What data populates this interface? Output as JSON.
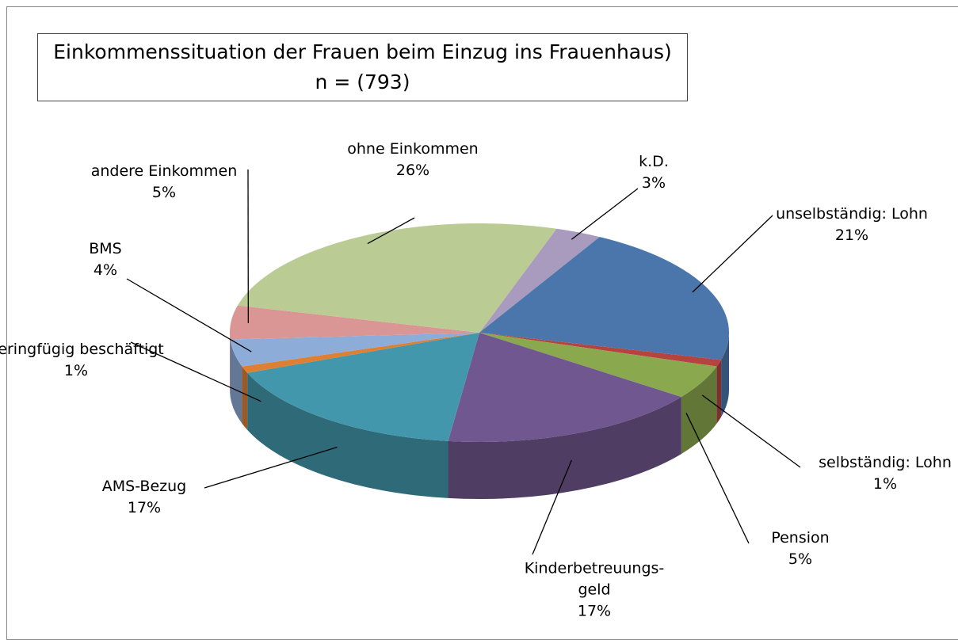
{
  "chart_data": {
    "type": "pie",
    "title": "Einkommenssituation der Frauen beim Einzug ins Frauenhaus)",
    "subtitle": "n = (793)",
    "categories": [
      "k.D.",
      "unselbständig: Lohn",
      "selbständig: Lohn",
      "Pension",
      "Kinderbetreuungs-geld",
      "AMS-Bezug",
      "geringfügig beschäftigt",
      "BMS",
      "andere Einkommen",
      "ohne Einkommen"
    ],
    "values": [
      3,
      21,
      1,
      5,
      17,
      17,
      1,
      4,
      5,
      26
    ],
    "value_labels": [
      "3%",
      "21%",
      "1%",
      "5%",
      "17%",
      "17%",
      "1%",
      "4%",
      "5%",
      "26%"
    ],
    "colors": [
      "#a99bbd",
      "#4a76ab",
      "#b64340",
      "#8aa84e",
      "#71578f",
      "#4397ad",
      "#dd8033",
      "#8eacd8",
      "#d99694",
      "#bbcb94"
    ]
  }
}
